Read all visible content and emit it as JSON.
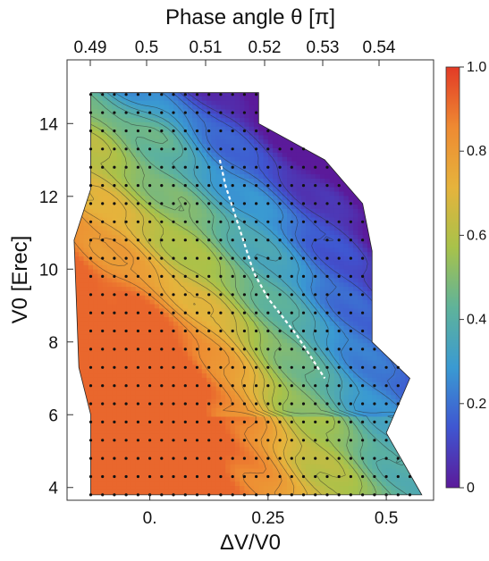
{
  "chart_data": {
    "type": "heatmap",
    "title": "",
    "top_axis": {
      "label": "Phase angle θ [π]",
      "ticks": [
        "0.49",
        "0.5",
        "0.51",
        "0.52",
        "0.53",
        "0.54"
      ]
    },
    "xlabel": "ΔV/V0",
    "ylabel": "V0 [Erec]",
    "xlim": [
      -0.175,
      0.6
    ],
    "ylim": [
      3.65,
      15.75
    ],
    "x_ticks": [
      {
        "value": 0.0,
        "label": "0."
      },
      {
        "value": 0.25,
        "label": "0.25"
      },
      {
        "value": 0.5,
        "label": "0.5"
      }
    ],
    "y_ticks": [
      4,
      6,
      8,
      10,
      12,
      14
    ],
    "colorbar": {
      "range": [
        0,
        1
      ],
      "ticks": [
        "0",
        "0.2",
        "0.4",
        "0.6",
        "0.8",
        "1.0"
      ],
      "colors": [
        "#5b1a9a",
        "#3f56d1",
        "#3a9ad2",
        "#5fb39a",
        "#a8c24a",
        "#e6b33c",
        "#ee8a32",
        "#e33a26"
      ]
    },
    "x_grid": [
      -0.125,
      -0.1,
      -0.075,
      -0.05,
      -0.025,
      0.0,
      0.025,
      0.05,
      0.075,
      0.1,
      0.125,
      0.15,
      0.175,
      0.2,
      0.225,
      0.25,
      0.275,
      0.3,
      0.325,
      0.35,
      0.375,
      0.4,
      0.425,
      0.45,
      0.475,
      0.5,
      0.525,
      0.55
    ],
    "y_grid": [
      3.8,
      4.3,
      4.8,
      5.3,
      5.8,
      6.3,
      6.8,
      7.3,
      7.8,
      8.3,
      8.8,
      9.3,
      9.8,
      10.3,
      10.8,
      11.3,
      11.8,
      12.3,
      12.8,
      13.3,
      13.8,
      14.3,
      14.8
    ],
    "region_outline": [
      [
        -0.125,
        3.8
      ],
      [
        0.545,
        3.8
      ],
      [
        0.575,
        3.8
      ],
      [
        0.5,
        5.5
      ],
      [
        0.55,
        7.0
      ],
      [
        0.47,
        8.0
      ],
      [
        0.47,
        10.5
      ],
      [
        0.45,
        11.8
      ],
      [
        0.37,
        13.0
      ],
      [
        0.23,
        14.0
      ],
      [
        0.23,
        14.85
      ],
      [
        -0.125,
        14.85
      ],
      [
        -0.125,
        12.2
      ],
      [
        -0.16,
        10.8
      ],
      [
        -0.15,
        7.3
      ],
      [
        -0.125,
        6.0
      ]
    ],
    "white_dashed_line": [
      [
        0.148,
        13.0
      ],
      [
        0.16,
        12.3
      ],
      [
        0.18,
        11.5
      ],
      [
        0.2,
        10.7
      ],
      [
        0.22,
        9.9
      ],
      [
        0.25,
        9.2
      ],
      [
        0.28,
        8.7
      ],
      [
        0.31,
        8.2
      ],
      [
        0.335,
        7.7
      ],
      [
        0.36,
        7.2
      ],
      [
        0.37,
        7.0
      ]
    ],
    "white_dashed_line_label": ""
  }
}
